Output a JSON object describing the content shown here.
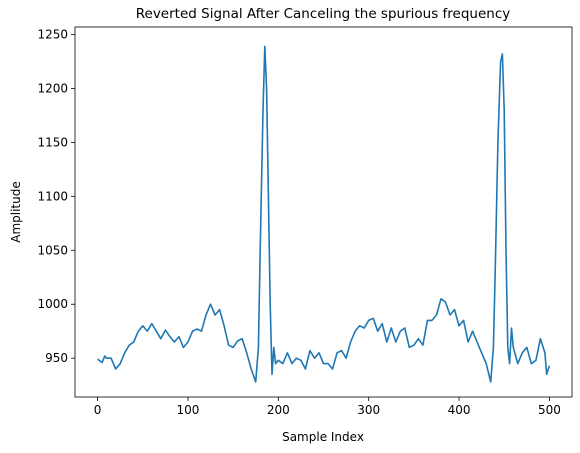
{
  "chart_data": {
    "type": "line",
    "title": "Reverted Signal After Canceling the spurious frequency",
    "xlabel": "Sample Index",
    "ylabel": "Amplitude",
    "color": "#1f77b4",
    "x": [
      0,
      5,
      8,
      10,
      15,
      20,
      25,
      30,
      35,
      40,
      45,
      50,
      55,
      60,
      65,
      70,
      75,
      80,
      85,
      90,
      95,
      100,
      105,
      110,
      115,
      120,
      125,
      130,
      135,
      140,
      145,
      150,
      155,
      160,
      165,
      170,
      175,
      178,
      180,
      183,
      185,
      187,
      189,
      191,
      193,
      195,
      197,
      200,
      205,
      210,
      215,
      220,
      225,
      230,
      235,
      240,
      245,
      250,
      255,
      260,
      265,
      270,
      275,
      280,
      285,
      290,
      295,
      300,
      305,
      310,
      315,
      320,
      325,
      330,
      335,
      340,
      345,
      350,
      355,
      360,
      365,
      370,
      375,
      380,
      385,
      390,
      395,
      400,
      405,
      410,
      415,
      420,
      425,
      430,
      435,
      438,
      440,
      443,
      446,
      448,
      450,
      452,
      454,
      456,
      458,
      460,
      465,
      470,
      475,
      480,
      485,
      490,
      495,
      497,
      500
    ],
    "values": [
      949,
      946,
      952,
      950,
      950,
      940,
      945,
      955,
      962,
      965,
      975,
      980,
      975,
      982,
      975,
      968,
      976,
      970,
      965,
      970,
      960,
      965,
      975,
      977,
      975,
      990,
      1000,
      990,
      995,
      980,
      962,
      960,
      966,
      968,
      955,
      940,
      928,
      960,
      1050,
      1180,
      1239,
      1200,
      1100,
      1000,
      935,
      960,
      945,
      948,
      945,
      955,
      945,
      950,
      948,
      940,
      957,
      950,
      955,
      945,
      945,
      940,
      955,
      957,
      950,
      965,
      975,
      980,
      978,
      985,
      987,
      975,
      982,
      965,
      978,
      965,
      975,
      978,
      960,
      962,
      968,
      962,
      985,
      985,
      990,
      1005,
      1002,
      990,
      995,
      980,
      985,
      965,
      975,
      965,
      955,
      945,
      928,
      960,
      1030,
      1150,
      1225,
      1232,
      1180,
      1050,
      960,
      945,
      978,
      960,
      945,
      955,
      960,
      945,
      948,
      968,
      955,
      935,
      943
    ],
    "xlim": [
      -25,
      525
    ],
    "ylim": [
      914,
      1257
    ],
    "xticks": [
      0,
      100,
      200,
      300,
      400,
      500
    ],
    "yticks": [
      950,
      1000,
      1050,
      1100,
      1150,
      1200,
      1250
    ]
  }
}
